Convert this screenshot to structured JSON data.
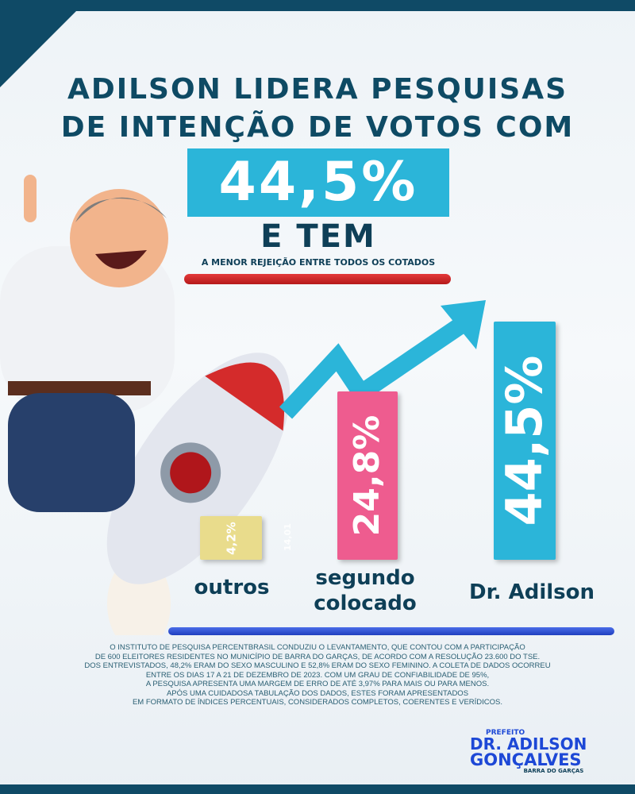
{
  "headline": {
    "line1": "ADILSON LIDERA PESQUISAS",
    "line2": "DE INTENÇÃO DE VOTOS COM",
    "highlight": "44,5%",
    "line3": "E TEM",
    "subline": "A MENOR REJEIÇÃO ENTRE TODOS OS COTADOS"
  },
  "colors": {
    "brand_dark": "#0f4a66",
    "accent": "#2bb5d9",
    "red": "#d42b2b",
    "blue": "#2a4fd6"
  },
  "chart_data": {
    "type": "bar",
    "categories": [
      "outros",
      "segundo colocado",
      "Dr. Adilson"
    ],
    "values": [
      4.2,
      24.8,
      44.5
    ],
    "labels": [
      "4,2%",
      "24,8%",
      "44,5%"
    ],
    "bar_colors": [
      "#e9dc8c",
      "#ee5c8f",
      "#2bb5d9"
    ],
    "trend_arrow": "up"
  },
  "faint_text": "14,01",
  "footnote": [
    "O INSTITUTO DE PESQUISA PERCENTBRASIL CONDUZIU O LEVANTAMENTO, QUE CONTOU COM A PARTICIPAÇÃO",
    "DE 600 ELEITORES RESIDENTES NO MUNICÍPIO DE BARRA DO GARÇAS, DE ACORDO COM A RESOLUÇÃO 23.600 DO TSE.",
    "DOS ENTREVISTADOS, 48,2% ERAM DO SEXO MASCULINO E 52,8% ERAM DO SEXO FEMININO. A COLETA DE DADOS OCORREU",
    "ENTRE OS DIAS 17 A 21 DE DEZEMBRO DE 2023. COM UM GRAU DE CONFIABILIDADE DE 95%,",
    "A PESQUISA APRESENTA UMA MARGEM DE ERRO DE ATÉ 3,97% PARA MAIS OU PARA MENOS.",
    "APÓS UMA CUIDADOSA TABULAÇÃO DOS DADOS, ESTES FORAM APRESENTADOS",
    "EM FORMATO DE ÍNDICES PERCENTUAIS, CONSIDERADOS COMPLETOS, COERENTES E VERÍDICOS."
  ],
  "logo": {
    "prefix": "PREFEITO",
    "name1": "DR. ADILSON",
    "name2": "GONÇALVES",
    "city": "BARRA DO GARÇAS"
  }
}
